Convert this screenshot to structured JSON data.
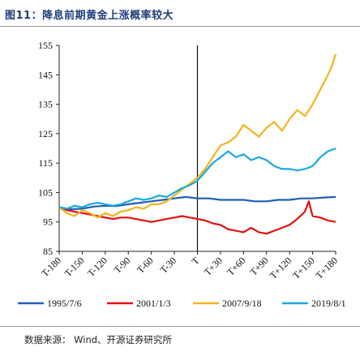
{
  "figure": {
    "title": "图11：降息前期黄金上涨概率较大",
    "source": "数据来源：  Wind、开源证券研究所"
  },
  "chart_data": {
    "type": "line",
    "ylim": [
      85,
      155
    ],
    "yticks": [
      85,
      95,
      105,
      115,
      125,
      135,
      145,
      155
    ],
    "xlim": [
      -180,
      180
    ],
    "xticks": [
      -180,
      -150,
      -120,
      -90,
      -60,
      -30,
      0,
      30,
      60,
      90,
      120,
      150,
      180
    ],
    "xtick_labels": [
      "T-180",
      "T-150",
      "T-120",
      "T-90",
      "T-60",
      "T-30",
      "T",
      "T+30",
      "T+60",
      "T+90",
      "T+120",
      "T+150",
      "T+180"
    ],
    "marker_x": 0,
    "legend_position": "bottom",
    "grid": false,
    "series": [
      {
        "name": "1995/7/6",
        "color": "#1f5fb4",
        "points": [
          [
            -180,
            100
          ],
          [
            -165,
            99.3
          ],
          [
            -150,
            99.5
          ],
          [
            -135,
            100.2
          ],
          [
            -120,
            100.5
          ],
          [
            -105,
            100.4
          ],
          [
            -90,
            101
          ],
          [
            -75,
            101.5
          ],
          [
            -60,
            102
          ],
          [
            -45,
            102.5
          ],
          [
            -30,
            103
          ],
          [
            -15,
            103.5
          ],
          [
            0,
            103
          ],
          [
            15,
            103
          ],
          [
            30,
            102.5
          ],
          [
            45,
            102.5
          ],
          [
            60,
            102.5
          ],
          [
            75,
            102
          ],
          [
            90,
            102
          ],
          [
            105,
            102.5
          ],
          [
            120,
            102.5
          ],
          [
            135,
            103
          ],
          [
            150,
            103
          ],
          [
            165,
            103.3
          ],
          [
            180,
            103.5
          ]
        ]
      },
      {
        "name": "2001/1/3",
        "color": "#e01010",
        "points": [
          [
            -180,
            100
          ],
          [
            -170,
            99
          ],
          [
            -160,
            98.5
          ],
          [
            -150,
            98
          ],
          [
            -140,
            97.5
          ],
          [
            -130,
            97
          ],
          [
            -120,
            96.5
          ],
          [
            -110,
            96
          ],
          [
            -100,
            96.5
          ],
          [
            -90,
            96.5
          ],
          [
            -80,
            96
          ],
          [
            -70,
            95.5
          ],
          [
            -60,
            95
          ],
          [
            -50,
            95.5
          ],
          [
            -40,
            96
          ],
          [
            -30,
            96.5
          ],
          [
            -20,
            97
          ],
          [
            -10,
            96.5
          ],
          [
            0,
            96
          ],
          [
            10,
            95.5
          ],
          [
            20,
            94.5
          ],
          [
            30,
            94
          ],
          [
            40,
            92.5
          ],
          [
            50,
            92
          ],
          [
            60,
            91.5
          ],
          [
            70,
            93
          ],
          [
            80,
            91.5
          ],
          [
            90,
            91
          ],
          [
            100,
            92
          ],
          [
            110,
            93
          ],
          [
            120,
            94
          ],
          [
            130,
            96
          ],
          [
            140,
            98.5
          ],
          [
            145,
            102
          ],
          [
            150,
            97
          ],
          [
            160,
            96.5
          ],
          [
            170,
            95.5
          ],
          [
            180,
            95
          ]
        ]
      },
      {
        "name": "2007/9/18",
        "color": "#f2b41e",
        "points": [
          [
            -180,
            100
          ],
          [
            -170,
            98
          ],
          [
            -160,
            97
          ],
          [
            -150,
            99
          ],
          [
            -140,
            98
          ],
          [
            -130,
            96.5
          ],
          [
            -120,
            98
          ],
          [
            -110,
            97
          ],
          [
            -100,
            98.5
          ],
          [
            -90,
            99
          ],
          [
            -80,
            100
          ],
          [
            -70,
            99.5
          ],
          [
            -60,
            101
          ],
          [
            -50,
            101
          ],
          [
            -40,
            102
          ],
          [
            -30,
            104
          ],
          [
            -20,
            106
          ],
          [
            -10,
            108
          ],
          [
            0,
            110
          ],
          [
            10,
            113
          ],
          [
            20,
            117
          ],
          [
            30,
            121
          ],
          [
            40,
            122
          ],
          [
            50,
            124
          ],
          [
            60,
            128
          ],
          [
            70,
            126
          ],
          [
            80,
            124
          ],
          [
            90,
            127
          ],
          [
            100,
            129
          ],
          [
            110,
            126
          ],
          [
            120,
            130
          ],
          [
            130,
            133
          ],
          [
            140,
            131
          ],
          [
            150,
            135
          ],
          [
            160,
            140
          ],
          [
            170,
            145
          ],
          [
            175,
            148
          ],
          [
            180,
            152
          ]
        ]
      },
      {
        "name": "2019/8/1",
        "color": "#18a8e0",
        "points": [
          [
            -180,
            100
          ],
          [
            -170,
            99.5
          ],
          [
            -160,
            100.5
          ],
          [
            -150,
            100
          ],
          [
            -140,
            101
          ],
          [
            -130,
            101.5
          ],
          [
            -120,
            101
          ],
          [
            -110,
            100.5
          ],
          [
            -100,
            101
          ],
          [
            -90,
            102
          ],
          [
            -80,
            103
          ],
          [
            -70,
            102.5
          ],
          [
            -60,
            103
          ],
          [
            -50,
            104
          ],
          [
            -40,
            103.5
          ],
          [
            -30,
            105
          ],
          [
            -20,
            106.5
          ],
          [
            -10,
            107.5
          ],
          [
            0,
            109
          ],
          [
            10,
            112
          ],
          [
            20,
            115
          ],
          [
            30,
            117
          ],
          [
            40,
            119
          ],
          [
            50,
            117
          ],
          [
            60,
            118
          ],
          [
            70,
            116
          ],
          [
            80,
            117
          ],
          [
            90,
            116
          ],
          [
            100,
            114
          ],
          [
            110,
            113
          ],
          [
            120,
            113
          ],
          [
            130,
            112.5
          ],
          [
            140,
            113
          ],
          [
            150,
            114
          ],
          [
            160,
            117
          ],
          [
            170,
            119
          ],
          [
            180,
            120
          ]
        ]
      }
    ]
  }
}
